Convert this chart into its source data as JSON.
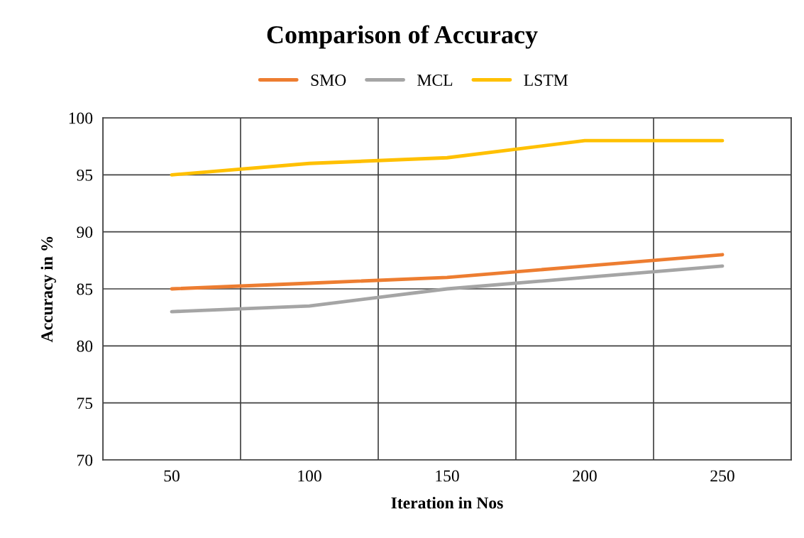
{
  "chart_data": {
    "type": "line",
    "title": "Comparison of Accuracy",
    "xlabel": "Iteration in Nos",
    "ylabel": "Accuracy in %",
    "categories": [
      "50",
      "100",
      "150",
      "200",
      "250"
    ],
    "series": [
      {
        "name": "SMO",
        "color": "#ed7d31",
        "values": [
          85,
          85.5,
          86,
          87,
          88
        ]
      },
      {
        "name": "MCL",
        "color": "#a5a5a5",
        "values": [
          83,
          83.5,
          85,
          86,
          87
        ]
      },
      {
        "name": "LSTM",
        "color": "#ffc000",
        "values": [
          95,
          96,
          96.5,
          98,
          98
        ]
      }
    ],
    "ylim": [
      70,
      100
    ],
    "yticks": [
      70,
      75,
      80,
      85,
      90,
      95,
      100
    ],
    "grid": true,
    "legend": "top",
    "marker": "none",
    "line_style": "solid"
  }
}
